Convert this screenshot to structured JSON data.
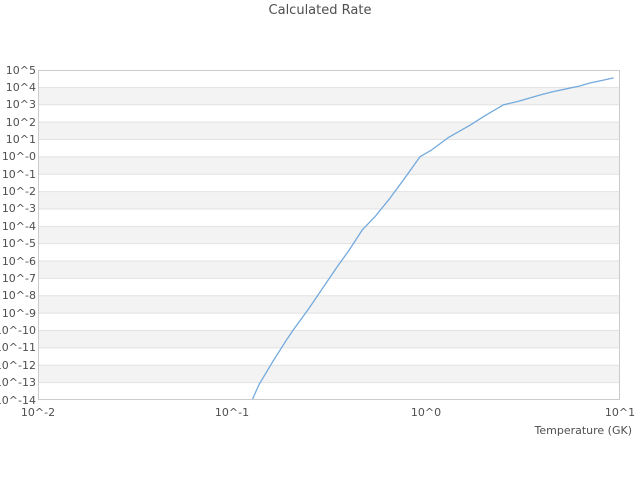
{
  "title": "Calculated Rate",
  "colors": {
    "line": "#74aadd",
    "stripe": "#f3f3f3",
    "gridline": "#e2e2e2",
    "border": "#cbcbcb",
    "text": "#4f4f4f",
    "background": "#ffffff"
  },
  "chart_data": {
    "type": "line",
    "title": "Calculated Rate",
    "xlabel": "Temperature (GK)",
    "ylabel": "",
    "x_scale": "log10",
    "y_scale": "log10",
    "xlim": [
      0.01,
      10
    ],
    "ylim": [
      1e-14,
      100000.0
    ],
    "x_tick_labels": [
      "10^-2",
      "10^-1",
      "10^0",
      "10^1"
    ],
    "y_tick_labels": [
      "10^5",
      "10^4",
      "10^3",
      "10^2",
      "10^1",
      "10^-0",
      "10^-1",
      "10^-2",
      "10^-3",
      "10^-4",
      "10^-5",
      "10^-6",
      "10^-7",
      "10^-8",
      "10^-9",
      "10^-10",
      "10^-11",
      "10^-12",
      "10^-13",
      "10^-14"
    ],
    "grid": "horizontal gridlines with alternating decade stripes, no vertical gridlines",
    "legend": "none",
    "series": [
      {
        "name": "Calculated Rate",
        "color": "#74aadd",
        "points_format": "[temperature_GK, log10_rate]",
        "points": [
          [
            0.127,
            -14.0
          ],
          [
            0.138,
            -13.1
          ],
          [
            0.16,
            -11.9
          ],
          [
            0.192,
            -10.5
          ],
          [
            0.206,
            -10.0
          ],
          [
            0.25,
            -8.7
          ],
          [
            0.3,
            -7.4
          ],
          [
            0.35,
            -6.3
          ],
          [
            0.4,
            -5.4
          ],
          [
            0.47,
            -4.2
          ],
          [
            0.55,
            -3.4
          ],
          [
            0.65,
            -2.4
          ],
          [
            0.78,
            -1.2
          ],
          [
            0.93,
            0.0
          ],
          [
            1.07,
            0.4
          ],
          [
            1.3,
            1.1
          ],
          [
            1.69,
            1.83
          ],
          [
            2.0,
            2.35
          ],
          [
            2.5,
            2.99
          ],
          [
            3.0,
            3.2
          ],
          [
            3.87,
            3.56
          ],
          [
            4.5,
            3.75
          ],
          [
            5.52,
            3.96
          ],
          [
            6.2,
            4.08
          ],
          [
            7.0,
            4.25
          ],
          [
            8.0,
            4.39
          ],
          [
            9.21,
            4.54
          ]
        ]
      }
    ]
  }
}
